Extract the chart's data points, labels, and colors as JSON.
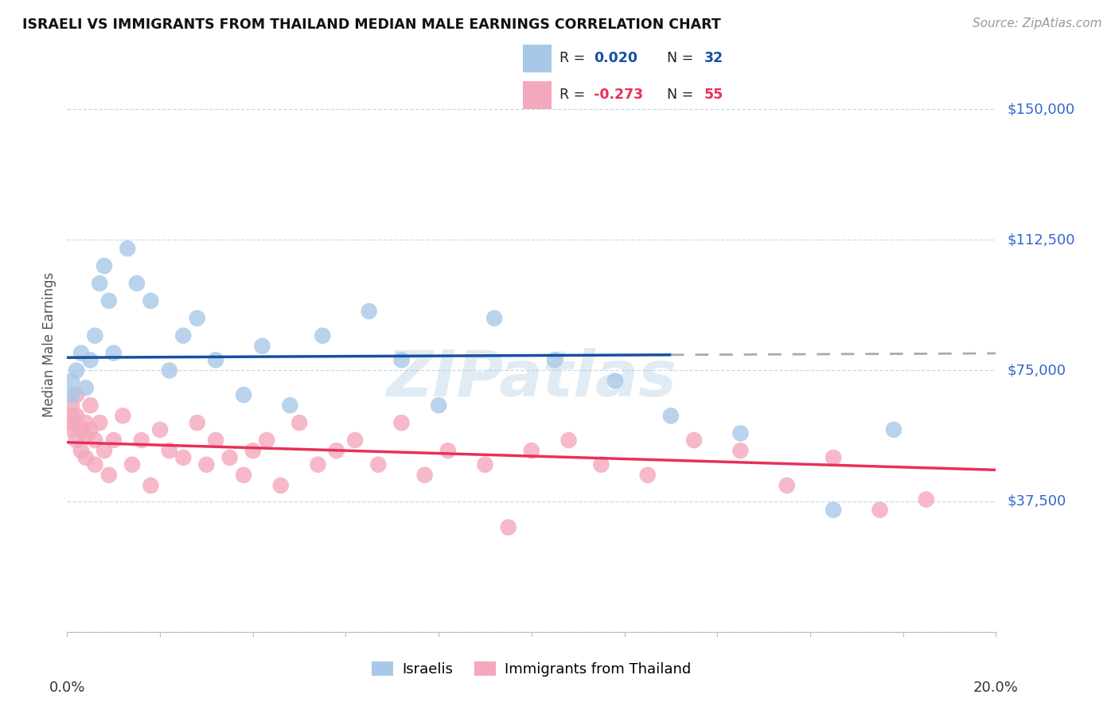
{
  "title": "ISRAELI VS IMMIGRANTS FROM THAILAND MEDIAN MALE EARNINGS CORRELATION CHART",
  "source": "Source: ZipAtlas.com",
  "ylabel": "Median Male Earnings",
  "yticks": [
    0,
    37500,
    75000,
    112500,
    150000
  ],
  "ytick_labels": [
    "",
    "$37,500",
    "$75,000",
    "$112,500",
    "$150,000"
  ],
  "xmin": 0.0,
  "xmax": 0.2,
  "ymin": 0,
  "ymax": 165000,
  "israeli_R": 0.02,
  "israeli_N": 32,
  "thailand_R": -0.273,
  "thailand_N": 55,
  "israeli_color": "#a8c8e8",
  "thailand_color": "#f4a8bc",
  "israeli_line_color": "#1650a0",
  "thai_line_color": "#e8305a",
  "watermark": "ZIPatlas",
  "israeli_x": [
    0.001,
    0.001,
    0.002,
    0.003,
    0.004,
    0.005,
    0.006,
    0.007,
    0.008,
    0.009,
    0.01,
    0.013,
    0.015,
    0.018,
    0.022,
    0.025,
    0.028,
    0.032,
    0.038,
    0.042,
    0.048,
    0.055,
    0.065,
    0.072,
    0.08,
    0.092,
    0.105,
    0.118,
    0.13,
    0.145,
    0.165,
    0.178
  ],
  "israeli_y": [
    68000,
    72000,
    75000,
    80000,
    70000,
    78000,
    85000,
    100000,
    105000,
    95000,
    80000,
    110000,
    100000,
    95000,
    75000,
    85000,
    90000,
    78000,
    68000,
    82000,
    65000,
    85000,
    92000,
    78000,
    65000,
    90000,
    78000,
    72000,
    62000,
    57000,
    35000,
    58000
  ],
  "thailand_x": [
    0.001,
    0.001,
    0.001,
    0.001,
    0.002,
    0.002,
    0.002,
    0.003,
    0.003,
    0.004,
    0.004,
    0.004,
    0.005,
    0.005,
    0.006,
    0.006,
    0.007,
    0.008,
    0.009,
    0.01,
    0.012,
    0.014,
    0.016,
    0.018,
    0.02,
    0.022,
    0.025,
    0.028,
    0.03,
    0.032,
    0.035,
    0.038,
    0.04,
    0.043,
    0.046,
    0.05,
    0.054,
    0.058,
    0.062,
    0.067,
    0.072,
    0.077,
    0.082,
    0.09,
    0.095,
    0.1,
    0.108,
    0.115,
    0.125,
    0.135,
    0.145,
    0.155,
    0.165,
    0.175,
    0.185
  ],
  "thailand_y": [
    65000,
    62000,
    60000,
    58000,
    68000,
    62000,
    55000,
    58000,
    52000,
    60000,
    56000,
    50000,
    65000,
    58000,
    55000,
    48000,
    60000,
    52000,
    45000,
    55000,
    62000,
    48000,
    55000,
    42000,
    58000,
    52000,
    50000,
    60000,
    48000,
    55000,
    50000,
    45000,
    52000,
    55000,
    42000,
    60000,
    48000,
    52000,
    55000,
    48000,
    60000,
    45000,
    52000,
    48000,
    30000,
    52000,
    55000,
    48000,
    45000,
    55000,
    52000,
    42000,
    50000,
    35000,
    38000
  ],
  "background_color": "#ffffff",
  "grid_color": "#c8d8e8",
  "title_color": "#111111",
  "right_label_color": "#3366cc",
  "legend_bg": "#f8faff"
}
